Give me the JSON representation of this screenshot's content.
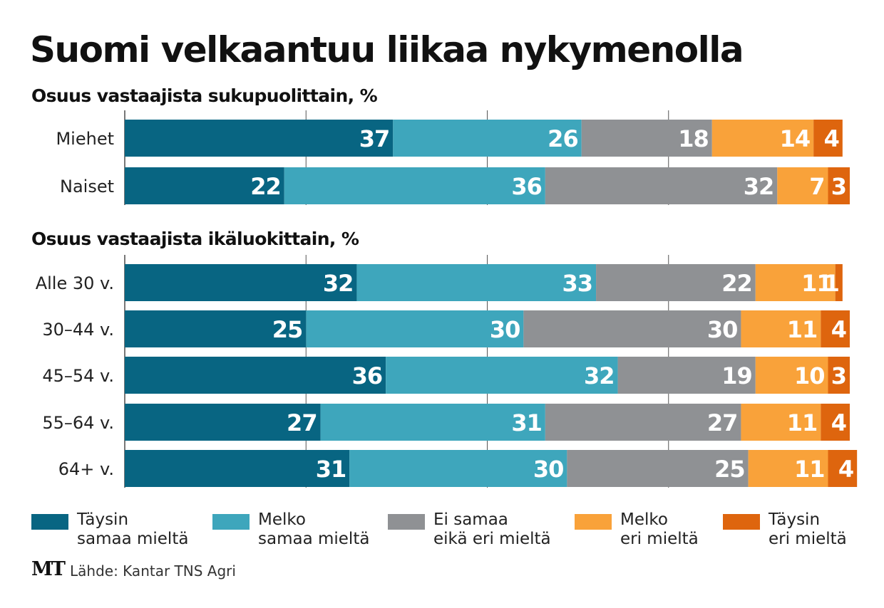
{
  "title": "Suomi velkaantuu liikaa nykymenolla",
  "chart_data": [
    {
      "type": "bar",
      "orientation": "horizontal",
      "stacked": true,
      "subtitle": "Osuus vastaajista sukupuolittain, %",
      "xlim": [
        0,
        100
      ],
      "categories": [
        "Miehet",
        "Naiset"
      ],
      "series": [
        {
          "name": "Täysin samaa mieltä",
          "color": "#086582",
          "values": [
            37,
            22
          ]
        },
        {
          "name": "Melko samaa mieltä",
          "color": "#3ea6bc",
          "values": [
            26,
            36
          ]
        },
        {
          "name": "Ei samaa eikä eri mieltä",
          "color": "#8f9194",
          "values": [
            18,
            32
          ]
        },
        {
          "name": "Melko eri mieltä",
          "color": "#f9a23a",
          "values": [
            14,
            7
          ]
        },
        {
          "name": "Täysin eri mieltä",
          "color": "#de650e",
          "values": [
            4,
            3
          ]
        }
      ]
    },
    {
      "type": "bar",
      "orientation": "horizontal",
      "stacked": true,
      "subtitle": "Osuus vastaajista ikäluokittain, %",
      "xlim": [
        0,
        100
      ],
      "categories": [
        "Alle 30 v.",
        "30–44 v.",
        "45–54 v.",
        "55–64 v.",
        "64+ v."
      ],
      "series": [
        {
          "name": "Täysin samaa mieltä",
          "color": "#086582",
          "values": [
            32,
            25,
            36,
            27,
            31
          ]
        },
        {
          "name": "Melko samaa mieltä",
          "color": "#3ea6bc",
          "values": [
            33,
            30,
            32,
            31,
            30
          ]
        },
        {
          "name": "Ei samaa eikä eri mieltä",
          "color": "#8f9194",
          "values": [
            22,
            30,
            19,
            27,
            25
          ]
        },
        {
          "name": "Melko eri mieltä",
          "color": "#f9a23a",
          "values": [
            11,
            11,
            10,
            11,
            11
          ]
        },
        {
          "name": "Täysin eri mieltä",
          "color": "#de650e",
          "values": [
            1,
            4,
            3,
            4,
            4
          ]
        }
      ]
    }
  ],
  "legend": [
    {
      "line1": "Täysin",
      "line2": "samaa mieltä",
      "color": "#086582"
    },
    {
      "line1": "Melko",
      "line2": "samaa mieltä",
      "color": "#3ea6bc"
    },
    {
      "line1": "Ei samaa",
      "line2": "eikä eri mieltä",
      "color": "#8f9194"
    },
    {
      "line1": "Melko",
      "line2": "eri mieltä",
      "color": "#f9a23a"
    },
    {
      "line1": "Täysin",
      "line2": "eri mieltä",
      "color": "#de650e"
    }
  ],
  "footer": {
    "logo": "MT",
    "source": "Lähde: Kantar TNS Agri"
  }
}
